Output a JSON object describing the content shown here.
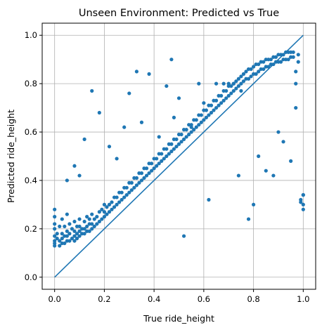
{
  "chart_data": {
    "type": "scatter",
    "title": "Unseen Environment: Predicted vs True",
    "xlabel": "True ride_height",
    "ylabel": "Predicted ride_height",
    "xlim": [
      -0.05,
      1.05
    ],
    "ylim": [
      -0.05,
      1.05
    ],
    "xticks": [
      "0.0",
      "0.2",
      "0.4",
      "0.6",
      "0.8",
      "1.0"
    ],
    "yticks": [
      "0.0",
      "0.2",
      "0.4",
      "0.6",
      "0.8",
      "1.0"
    ],
    "grid": true,
    "point_color": "#1f77b4",
    "line_color": "#1f77b4",
    "reference_line": {
      "x": [
        0,
        1
      ],
      "y": [
        0,
        1
      ]
    },
    "points_x": [
      0.0,
      0.0,
      0.0,
      0.0,
      0.0,
      0.0,
      0.0,
      0.0,
      0.01,
      0.01,
      0.02,
      0.02,
      0.02,
      0.03,
      0.03,
      0.03,
      0.03,
      0.04,
      0.04,
      0.04,
      0.05,
      0.05,
      0.05,
      0.05,
      0.06,
      0.06,
      0.06,
      0.07,
      0.07,
      0.08,
      0.08,
      0.08,
      0.08,
      0.09,
      0.09,
      0.09,
      0.1,
      0.1,
      0.1,
      0.1,
      0.11,
      0.11,
      0.12,
      0.12,
      0.12,
      0.13,
      0.13,
      0.13,
      0.14,
      0.14,
      0.14,
      0.15,
      0.15,
      0.15,
      0.16,
      0.16,
      0.17,
      0.17,
      0.18,
      0.18,
      0.19,
      0.19,
      0.2,
      0.2,
      0.2,
      0.21,
      0.21,
      0.22,
      0.22,
      0.23,
      0.23,
      0.24,
      0.24,
      0.25,
      0.25,
      0.26,
      0.26,
      0.27,
      0.27,
      0.28,
      0.28,
      0.29,
      0.29,
      0.3,
      0.3,
      0.31,
      0.31,
      0.32,
      0.32,
      0.33,
      0.33,
      0.34,
      0.34,
      0.35,
      0.35,
      0.36,
      0.36,
      0.37,
      0.37,
      0.38,
      0.38,
      0.39,
      0.39,
      0.4,
      0.4,
      0.41,
      0.41,
      0.42,
      0.42,
      0.43,
      0.43,
      0.44,
      0.44,
      0.45,
      0.45,
      0.46,
      0.46,
      0.47,
      0.47,
      0.48,
      0.48,
      0.49,
      0.49,
      0.5,
      0.5,
      0.51,
      0.51,
      0.52,
      0.52,
      0.53,
      0.53,
      0.54,
      0.54,
      0.55,
      0.55,
      0.56,
      0.56,
      0.57,
      0.57,
      0.58,
      0.58,
      0.59,
      0.59,
      0.6,
      0.6,
      0.61,
      0.61,
      0.62,
      0.62,
      0.63,
      0.63,
      0.64,
      0.64,
      0.65,
      0.65,
      0.66,
      0.66,
      0.67,
      0.67,
      0.68,
      0.68,
      0.69,
      0.69,
      0.7,
      0.7,
      0.71,
      0.71,
      0.72,
      0.72,
      0.73,
      0.73,
      0.74,
      0.74,
      0.75,
      0.75,
      0.76,
      0.76,
      0.77,
      0.77,
      0.78,
      0.78,
      0.79,
      0.79,
      0.8,
      0.8,
      0.81,
      0.81,
      0.82,
      0.82,
      0.83,
      0.83,
      0.84,
      0.84,
      0.85,
      0.85,
      0.86,
      0.86,
      0.87,
      0.87,
      0.88,
      0.88,
      0.89,
      0.89,
      0.9,
      0.9,
      0.91,
      0.91,
      0.92,
      0.92,
      0.93,
      0.93,
      0.94,
      0.94,
      0.95,
      0.95,
      0.96,
      0.96,
      0.97,
      0.97,
      0.98,
      0.98,
      0.99,
      0.99,
      1.0,
      1.0,
      1.0,
      1.0,
      0.05,
      0.08,
      0.1,
      0.22,
      0.25,
      0.28,
      0.35,
      0.42,
      0.48,
      0.5,
      0.55,
      0.58,
      0.6,
      0.65,
      0.68,
      0.7,
      0.72,
      0.75,
      0.78,
      0.8,
      0.85,
      0.88,
      0.92,
      0.95,
      0.12,
      0.18,
      0.3,
      0.38,
      0.45,
      0.52,
      0.62,
      0.74,
      0.82,
      0.9,
      0.97,
      0.15,
      0.33,
      0.47,
      0.57,
      0.67,
      0.77,
      0.86,
      0.94,
      0.99
    ],
    "points_y": [
      0.13,
      0.15,
      0.17,
      0.2,
      0.22,
      0.25,
      0.28,
      0.14,
      0.16,
      0.18,
      0.13,
      0.15,
      0.21,
      0.14,
      0.16,
      0.18,
      0.24,
      0.14,
      0.17,
      0.21,
      0.15,
      0.17,
      0.19,
      0.26,
      0.15,
      0.18,
      0.22,
      0.16,
      0.2,
      0.15,
      0.17,
      0.19,
      0.23,
      0.16,
      0.18,
      0.21,
      0.17,
      0.19,
      0.21,
      0.24,
      0.18,
      0.2,
      0.18,
      0.2,
      0.23,
      0.19,
      0.21,
      0.25,
      0.19,
      0.22,
      0.24,
      0.2,
      0.22,
      0.26,
      0.21,
      0.24,
      0.22,
      0.25,
      0.23,
      0.27,
      0.24,
      0.28,
      0.25,
      0.27,
      0.3,
      0.26,
      0.29,
      0.27,
      0.3,
      0.28,
      0.31,
      0.29,
      0.33,
      0.3,
      0.33,
      0.31,
      0.35,
      0.32,
      0.35,
      0.33,
      0.37,
      0.34,
      0.37,
      0.35,
      0.39,
      0.36,
      0.39,
      0.37,
      0.41,
      0.38,
      0.41,
      0.39,
      0.43,
      0.4,
      0.43,
      0.41,
      0.45,
      0.42,
      0.45,
      0.43,
      0.47,
      0.44,
      0.47,
      0.45,
      0.49,
      0.46,
      0.49,
      0.47,
      0.51,
      0.48,
      0.51,
      0.49,
      0.53,
      0.5,
      0.53,
      0.51,
      0.55,
      0.52,
      0.55,
      0.53,
      0.57,
      0.54,
      0.57,
      0.55,
      0.59,
      0.56,
      0.59,
      0.57,
      0.61,
      0.58,
      0.61,
      0.59,
      0.63,
      0.6,
      0.63,
      0.61,
      0.65,
      0.62,
      0.65,
      0.63,
      0.67,
      0.64,
      0.67,
      0.65,
      0.69,
      0.66,
      0.69,
      0.67,
      0.71,
      0.68,
      0.71,
      0.69,
      0.73,
      0.7,
      0.73,
      0.71,
      0.75,
      0.72,
      0.75,
      0.73,
      0.77,
      0.74,
      0.77,
      0.75,
      0.79,
      0.76,
      0.79,
      0.77,
      0.8,
      0.78,
      0.81,
      0.79,
      0.82,
      0.8,
      0.83,
      0.81,
      0.84,
      0.82,
      0.85,
      0.82,
      0.86,
      0.83,
      0.86,
      0.84,
      0.87,
      0.84,
      0.88,
      0.85,
      0.88,
      0.86,
      0.89,
      0.86,
      0.89,
      0.87,
      0.9,
      0.87,
      0.9,
      0.88,
      0.9,
      0.88,
      0.91,
      0.89,
      0.91,
      0.89,
      0.92,
      0.89,
      0.92,
      0.9,
      0.92,
      0.9,
      0.93,
      0.9,
      0.93,
      0.91,
      0.93,
      0.91,
      0.93,
      0.8,
      0.85,
      0.89,
      0.92,
      0.31,
      0.32,
      0.34,
      0.28,
      0.34,
      0.3,
      0.4,
      0.46,
      0.42,
      0.54,
      0.49,
      0.62,
      0.64,
      0.58,
      0.66,
      0.74,
      0.62,
      0.8,
      0.72,
      0.8,
      0.8,
      0.8,
      0.8,
      0.77,
      0.24,
      0.3,
      0.44,
      0.42,
      0.56,
      0.48,
      0.57,
      0.68,
      0.76,
      0.84,
      0.79,
      0.17,
      0.32,
      0.42,
      0.5,
      0.6,
      0.7,
      0.77,
      0.85,
      0.9
    ]
  }
}
